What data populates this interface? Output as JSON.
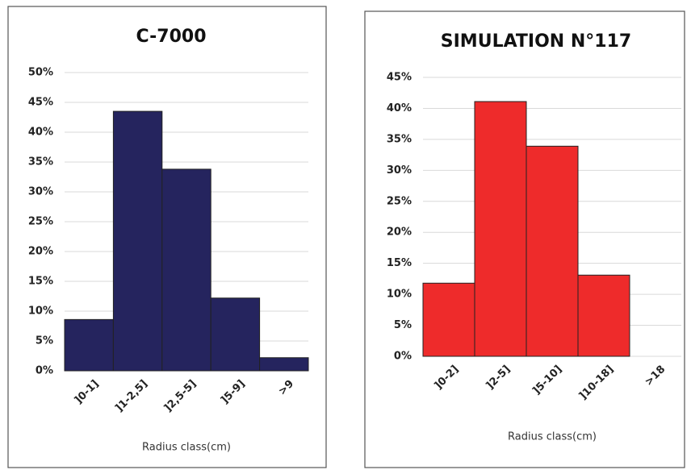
{
  "chart_data": [
    {
      "type": "bar",
      "title": "C-7000",
      "x_label": "Radius class(cm)",
      "categories": [
        "]0-1]",
        "]1-2,5]",
        "]2,5-5]",
        "]5-9]",
        ">9"
      ],
      "values": [
        8.6,
        43.5,
        33.8,
        12.2,
        2.2
      ],
      "color": "#25245e",
      "ylim": [
        0,
        50
      ],
      "yticks": [
        {
          "value": 0,
          "label": "0%"
        },
        {
          "value": 5,
          "label": "5%"
        },
        {
          "value": 10,
          "label": "10%"
        },
        {
          "value": 15,
          "label": "15%"
        },
        {
          "value": 20,
          "label": "20%"
        },
        {
          "value": 25,
          "label": "25%"
        },
        {
          "value": 30,
          "label": "30%"
        },
        {
          "value": 35,
          "label": "35%"
        },
        {
          "value": 40,
          "label": "40%"
        },
        {
          "value": 45,
          "label": "45%"
        },
        {
          "value": 50,
          "label": "50%"
        }
      ],
      "grid": true
    },
    {
      "type": "bar",
      "title": "SIMULATION N°117",
      "x_label": "Radius class(cm)",
      "categories": [
        "]0-2]",
        "]2-5]",
        "]5-10]",
        "]10-18]",
        ">18"
      ],
      "values": [
        11.8,
        41.1,
        33.9,
        13.1,
        0
      ],
      "color": "#ee2b2b",
      "ylim": [
        0,
        45
      ],
      "yticks": [
        {
          "value": 0,
          "label": "0%"
        },
        {
          "value": 5,
          "label": "5%"
        },
        {
          "value": 10,
          "label": "10%"
        },
        {
          "value": 15,
          "label": "15%"
        },
        {
          "value": 20,
          "label": "20%"
        },
        {
          "value": 25,
          "label": "25%"
        },
        {
          "value": 30,
          "label": "30%"
        },
        {
          "value": 35,
          "label": "35%"
        },
        {
          "value": 40,
          "label": "40%"
        },
        {
          "value": 45,
          "label": "45%"
        }
      ],
      "grid": true
    }
  ]
}
